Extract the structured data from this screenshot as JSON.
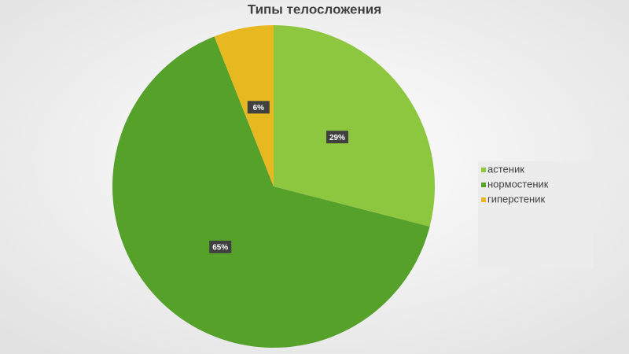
{
  "chart_data": {
    "type": "pie",
    "title": "Типы телосложения",
    "categories": [
      "астеник",
      "нормостеник",
      "гиперстеник"
    ],
    "values": [
      29,
      65,
      6
    ],
    "value_labels": [
      "29%",
      "65%",
      "6%"
    ],
    "colors": [
      "#8dc63f",
      "#55a12a",
      "#e8b820"
    ],
    "legend": "right"
  }
}
